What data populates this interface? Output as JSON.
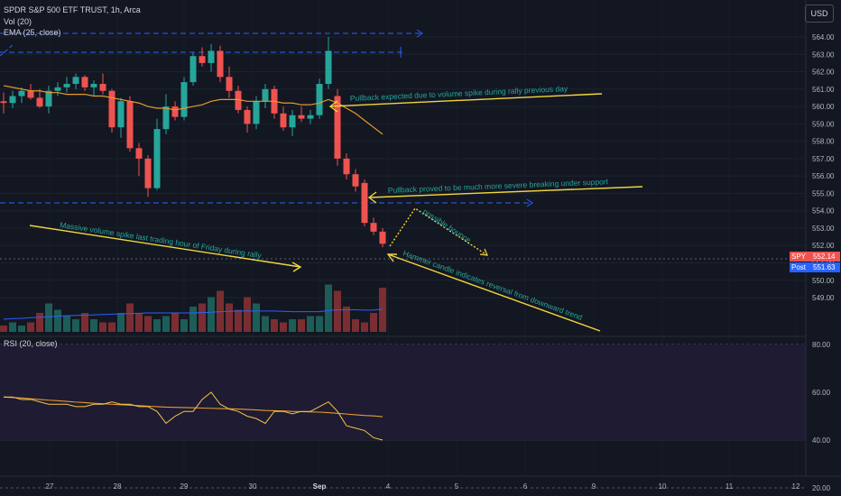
{
  "header": {
    "symbol_line": "SPDR S&P 500 ETF TRUST, 1h, Arca",
    "vol_label": "Vol (20)",
    "ema_label": "EMA (25, close)",
    "currency_button": "USD"
  },
  "colors": {
    "background": "#131722",
    "up": "#26a69a",
    "down": "#ef5350",
    "ema": "#e59a2e",
    "annotation": "#f2d63c",
    "annotation_text": "#26a69a",
    "support_lines": "#2962ff",
    "rsi": "#f5c542",
    "rsi_ma": "#e59a2e",
    "vol_ma": "#2962ff"
  },
  "annotations": [
    "Pullback expected due to volume spike during rally previous day",
    "Pullback proved to be much more severe breaking under support",
    "possible bounce",
    "Massive volume spike last trading hour of Friday during rally",
    "Hammer candle indicates reversal from downward trend"
  ],
  "price_tags": {
    "spy_label": "SPY",
    "spy_value": "552.14",
    "post_label": "Post",
    "post_value": "551.63"
  },
  "rsi_panel": {
    "label": "RSI (20, close)"
  },
  "chart_data": [
    {
      "type": "candlestick",
      "y_ticks": [
        "564.00",
        "563.00",
        "562.00",
        "561.00",
        "560.00",
        "559.00",
        "558.00",
        "557.00",
        "556.00",
        "555.00",
        "554.00",
        "553.00",
        "552.00",
        "551.00",
        "550.00",
        "549.00"
      ],
      "x_ticks": [
        "27",
        "28",
        "29",
        "30",
        "Sep",
        "4",
        "5",
        "6",
        "9",
        "10",
        "11",
        "12"
      ],
      "ylim": [
        548.3,
        564.6
      ],
      "candles": [
        {
          "o": 560.3,
          "h": 560.8,
          "l": 559.6,
          "c": 560.2
        },
        {
          "o": 560.2,
          "h": 560.9,
          "l": 559.9,
          "c": 560.6
        },
        {
          "o": 560.6,
          "h": 561.1,
          "l": 560.2,
          "c": 560.9
        },
        {
          "o": 560.9,
          "h": 561.3,
          "l": 560.4,
          "c": 560.5
        },
        {
          "o": 560.5,
          "h": 561.0,
          "l": 559.9,
          "c": 560.0
        },
        {
          "o": 560.0,
          "h": 561.2,
          "l": 559.6,
          "c": 560.9
        },
        {
          "o": 560.9,
          "h": 561.4,
          "l": 560.6,
          "c": 561.1
        },
        {
          "o": 561.1,
          "h": 561.7,
          "l": 560.8,
          "c": 561.3
        },
        {
          "o": 561.3,
          "h": 561.9,
          "l": 561.0,
          "c": 561.7
        },
        {
          "o": 561.7,
          "h": 561.8,
          "l": 560.9,
          "c": 561.1
        },
        {
          "o": 561.1,
          "h": 561.5,
          "l": 560.6,
          "c": 561.3
        },
        {
          "o": 561.3,
          "h": 561.9,
          "l": 560.7,
          "c": 560.9
        },
        {
          "o": 560.9,
          "h": 561.0,
          "l": 558.5,
          "c": 558.8
        },
        {
          "o": 558.8,
          "h": 560.5,
          "l": 558.2,
          "c": 560.3
        },
        {
          "o": 560.3,
          "h": 560.6,
          "l": 557.4,
          "c": 557.6
        },
        {
          "o": 557.6,
          "h": 557.9,
          "l": 556.0,
          "c": 557.0
        },
        {
          "o": 557.0,
          "h": 557.2,
          "l": 554.8,
          "c": 555.3
        },
        {
          "o": 555.3,
          "h": 559.3,
          "l": 555.2,
          "c": 558.7
        },
        {
          "o": 558.7,
          "h": 560.7,
          "l": 558.4,
          "c": 560.0
        },
        {
          "o": 560.0,
          "h": 560.3,
          "l": 559.2,
          "c": 559.4
        },
        {
          "o": 559.4,
          "h": 561.7,
          "l": 559.2,
          "c": 561.4
        },
        {
          "o": 561.4,
          "h": 563.1,
          "l": 561.2,
          "c": 562.9
        },
        {
          "o": 562.9,
          "h": 563.4,
          "l": 562.3,
          "c": 562.5
        },
        {
          "o": 562.5,
          "h": 563.6,
          "l": 562.0,
          "c": 563.2
        },
        {
          "o": 563.2,
          "h": 563.5,
          "l": 561.4,
          "c": 561.7
        },
        {
          "o": 561.7,
          "h": 562.3,
          "l": 560.5,
          "c": 560.9
        },
        {
          "o": 560.9,
          "h": 561.2,
          "l": 559.6,
          "c": 559.8
        },
        {
          "o": 559.8,
          "h": 560.0,
          "l": 558.5,
          "c": 559.0
        },
        {
          "o": 559.0,
          "h": 560.6,
          "l": 558.7,
          "c": 560.3
        },
        {
          "o": 560.3,
          "h": 561.3,
          "l": 559.9,
          "c": 561.0
        },
        {
          "o": 561.0,
          "h": 561.2,
          "l": 559.3,
          "c": 559.6
        },
        {
          "o": 559.6,
          "h": 560.0,
          "l": 558.6,
          "c": 558.8
        },
        {
          "o": 558.8,
          "h": 559.8,
          "l": 558.3,
          "c": 559.5
        },
        {
          "o": 559.5,
          "h": 560.0,
          "l": 559.1,
          "c": 559.3
        },
        {
          "o": 559.3,
          "h": 559.8,
          "l": 559.0,
          "c": 559.5
        },
        {
          "o": 559.5,
          "h": 561.6,
          "l": 559.3,
          "c": 561.3
        },
        {
          "o": 561.3,
          "h": 564.0,
          "l": 561.0,
          "c": 563.2
        },
        {
          "o": 560.6,
          "h": 561.0,
          "l": 556.6,
          "c": 557.0
        },
        {
          "o": 557.0,
          "h": 557.3,
          "l": 555.8,
          "c": 556.1
        },
        {
          "o": 556.1,
          "h": 556.4,
          "l": 555.1,
          "c": 555.4
        },
        {
          "o": 555.6,
          "h": 555.8,
          "l": 553.1,
          "c": 553.3
        },
        {
          "o": 553.3,
          "h": 553.6,
          "l": 552.6,
          "c": 552.8
        },
        {
          "o": 552.8,
          "h": 553.0,
          "l": 551.9,
          "c": 552.1
        }
      ],
      "ema_25": [
        561.2,
        561.1,
        561.0,
        560.9,
        560.9,
        560.8,
        560.8,
        560.7,
        560.7,
        560.7,
        560.6,
        560.6,
        560.5,
        560.4,
        560.3,
        560.2,
        560.0,
        559.9,
        559.9,
        559.8,
        559.9,
        560.0,
        560.1,
        560.3,
        560.4,
        560.4,
        560.4,
        560.3,
        560.3,
        560.3,
        560.3,
        560.2,
        560.2,
        560.1,
        560.1,
        560.2,
        560.4,
        560.2,
        559.9,
        559.6,
        559.2,
        558.8,
        558.4
      ],
      "volume": [
        2,
        3,
        2,
        3,
        6,
        9,
        7,
        5,
        4,
        6,
        4,
        3,
        3,
        6,
        9,
        6,
        5,
        4,
        5,
        6,
        4,
        8,
        9,
        11,
        13,
        9,
        7,
        11,
        9,
        5,
        4,
        3,
        4,
        4,
        5,
        5,
        15,
        13,
        8,
        4,
        3,
        6,
        14
      ],
      "volume_ma": [
        4.0,
        4.2,
        4.3,
        4.5,
        4.6,
        4.8,
        5.0,
        5.1,
        5.2,
        5.3,
        5.4,
        5.5,
        5.6,
        5.7,
        5.8,
        5.9,
        6.0,
        6.0,
        6.0,
        6.0,
        6.0,
        6.0,
        6.1,
        6.2,
        6.4,
        6.5,
        6.6,
        6.6,
        6.6,
        6.6,
        6.6,
        6.5,
        6.4,
        6.4,
        6.4,
        6.4,
        6.8,
        7.0,
        7.0,
        7.0,
        6.9,
        6.9,
        7.2
      ]
    },
    {
      "type": "line",
      "title": "RSI (20, close)",
      "y_ticks": [
        "80.00",
        "60.00",
        "40.00",
        "20.00"
      ],
      "ylim": [
        12,
        84
      ],
      "band": [
        30,
        70
      ],
      "rsi": [
        58,
        58,
        57,
        57,
        56,
        55,
        55,
        55,
        54,
        54,
        55,
        55,
        56,
        55,
        55,
        54,
        54,
        52,
        47,
        50,
        52,
        52,
        57,
        60,
        55,
        53,
        52,
        50,
        49,
        47,
        52,
        52,
        51,
        52,
        52,
        54,
        56,
        52,
        46,
        45,
        44,
        41,
        40
      ],
      "rsi_ma": [
        58,
        57.8,
        57.6,
        57.3,
        57.0,
        56.7,
        56.5,
        56.2,
        55.9,
        55.7,
        55.4,
        55.2,
        55.0,
        54.8,
        54.6,
        54.4,
        54.2,
        54.0,
        53.8,
        53.7,
        53.6,
        53.5,
        53.4,
        53.3,
        53.2,
        53.1,
        53.0,
        52.8,
        52.6,
        52.4,
        52.3,
        52.2,
        52.0,
        51.9,
        51.8,
        51.7,
        51.5,
        51.2,
        50.9,
        50.6,
        50.3,
        50.1,
        49.8
      ]
    }
  ]
}
